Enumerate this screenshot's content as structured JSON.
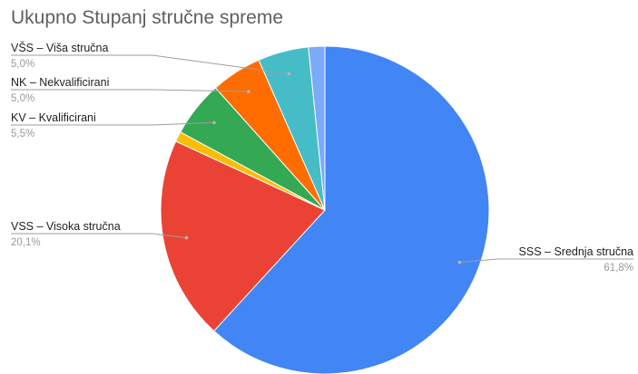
{
  "chart_data": {
    "type": "pie",
    "title": "Ukupno Stupanj stručne spreme",
    "slices": [
      {
        "label": "SSS – Srednja stručna",
        "value": 61.8,
        "display": "61,8%",
        "color": "#4285f4",
        "show_label": true
      },
      {
        "label": "VSS – Visoka stručna",
        "value": 20.1,
        "display": "20,1%",
        "color": "#ea4335",
        "show_label": true
      },
      {
        "label": "",
        "value": 1.0,
        "display": "",
        "color": "#fbbc04",
        "show_label": false
      },
      {
        "label": "KV – Kvalificirani",
        "value": 5.5,
        "display": "5,5%",
        "color": "#34a853",
        "show_label": true
      },
      {
        "label": "NK – Nekvalificirani",
        "value": 5.0,
        "display": "5,0%",
        "color": "#ff6d01",
        "show_label": true
      },
      {
        "label": "VŠS – Viša stručna",
        "value": 5.0,
        "display": "5,0%",
        "color": "#46bdc6",
        "show_label": true
      },
      {
        "label": "",
        "value": 1.6,
        "display": "",
        "color": "#7baaf7",
        "show_label": false
      }
    ],
    "legend": "none"
  }
}
